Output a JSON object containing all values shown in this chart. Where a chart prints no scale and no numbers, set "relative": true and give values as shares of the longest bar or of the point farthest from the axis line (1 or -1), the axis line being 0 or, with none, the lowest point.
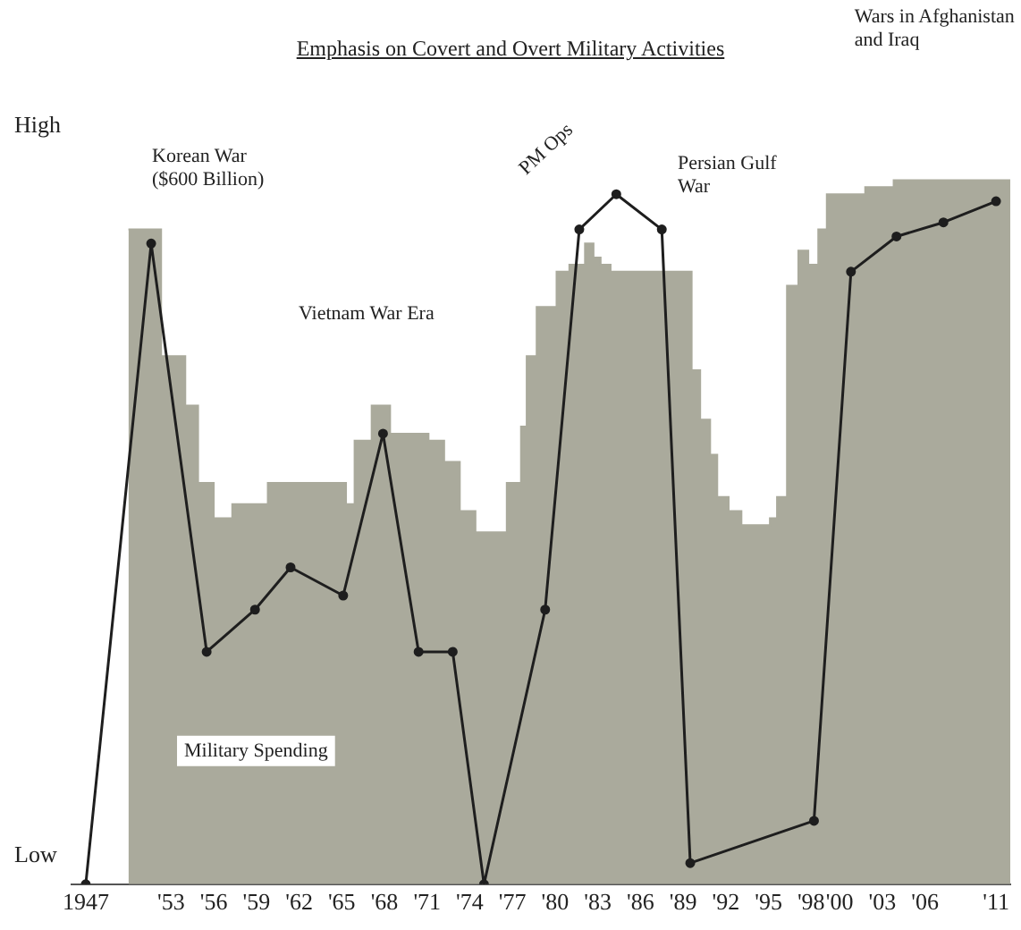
{
  "chart_data": {
    "type": "line",
    "title": "Emphasis on Covert and Overt Military Activities",
    "relative": true,
    "xlim": [
      1946,
      2012
    ],
    "xticks": [
      {
        "value": 1947,
        "label": "1947"
      },
      {
        "value": 1953,
        "label": "'53"
      },
      {
        "value": 1956,
        "label": "'56"
      },
      {
        "value": 1959,
        "label": "'59"
      },
      {
        "value": 1962,
        "label": "'62"
      },
      {
        "value": 1965,
        "label": "'65"
      },
      {
        "value": 1968,
        "label": "'68"
      },
      {
        "value": 1971,
        "label": "'71"
      },
      {
        "value": 1974,
        "label": "'74"
      },
      {
        "value": 1977,
        "label": "'77"
      },
      {
        "value": 1980,
        "label": "'80"
      },
      {
        "value": 1983,
        "label": "'83"
      },
      {
        "value": 1986,
        "label": "'86"
      },
      {
        "value": 1989,
        "label": "'89"
      },
      {
        "value": 1992,
        "label": "'92"
      },
      {
        "value": 1995,
        "label": "'95"
      },
      {
        "value": 1998,
        "label": "'98"
      },
      {
        "value": 2000,
        "label": "'00"
      },
      {
        "value": 2003,
        "label": "'03"
      },
      {
        "value": 2006,
        "label": "'06"
      },
      {
        "value": 2011,
        "label": "'11"
      }
    ],
    "series": [
      {
        "name": "Military Spending",
        "type": "area",
        "color": "#aaaa9c",
        "x": [
          1950,
          1952.3,
          1952.3,
          1954,
          1954,
          1954.9,
          1954.9,
          1956,
          1956,
          1957.3,
          1957.3,
          1959.8,
          1959.8,
          1965.3,
          1965.3,
          1965.9,
          1965.9,
          1967.1,
          1967.1,
          1968.4,
          1968.4,
          1971.1,
          1971.1,
          1972.2,
          1972.2,
          1973.3,
          1973.3,
          1974.4,
          1974.4,
          1976.6,
          1976.6,
          1977.6,
          1977.6,
          1978,
          1978,
          1978.7,
          1978.7,
          1980.1,
          1980.1,
          1981,
          1981,
          1982.1,
          1982.1,
          1982.7,
          1982.7,
          1983.2,
          1983.2,
          1983.9,
          1983.9,
          1989.6,
          1989.6,
          1990.2,
          1990.2,
          1990.9,
          1990.9,
          1991.4,
          1991.4,
          1992.2,
          1992.2,
          1993.1,
          1993.1,
          1995.1,
          1995.1,
          1995.6,
          1995.6,
          1996.3,
          1996.3,
          1997.1,
          1997.1,
          1997.8,
          1997.8,
          1998.5,
          1998.5,
          1999.1,
          1999.1,
          2001.8,
          2001.8,
          2003.8,
          2003.8,
          2012
        ],
        "values": [
          0.93,
          0.93,
          0.75,
          0.75,
          0.68,
          0.68,
          0.57,
          0.57,
          0.52,
          0.52,
          0.54,
          0.54,
          0.57,
          0.57,
          0.54,
          0.54,
          0.63,
          0.63,
          0.68,
          0.68,
          0.64,
          0.64,
          0.63,
          0.63,
          0.6,
          0.6,
          0.53,
          0.53,
          0.5,
          0.5,
          0.57,
          0.57,
          0.65,
          0.65,
          0.75,
          0.75,
          0.82,
          0.82,
          0.87,
          0.87,
          0.88,
          0.88,
          0.91,
          0.91,
          0.89,
          0.89,
          0.88,
          0.88,
          0.87,
          0.87,
          0.73,
          0.73,
          0.66,
          0.66,
          0.61,
          0.61,
          0.55,
          0.55,
          0.53,
          0.53,
          0.51,
          0.51,
          0.52,
          0.52,
          0.55,
          0.55,
          0.85,
          0.85,
          0.9,
          0.9,
          0.88,
          0.88,
          0.93,
          0.93,
          0.98,
          0.98,
          0.99,
          0.99,
          1,
          1
        ]
      },
      {
        "type": "line",
        "color": "#1e1e1e",
        "marker": "circle",
        "x": [
          1947,
          1951.6,
          1955.5,
          1958.9,
          1961.4,
          1965.1,
          1967.9,
          1970.4,
          1972.8,
          1975,
          1979.3,
          1981.7,
          1984.3,
          1987.5,
          1989.5,
          1998.2,
          2000.8,
          2004,
          2007.3,
          2011
        ],
        "values": [
          0,
          0.91,
          0.33,
          0.39,
          0.45,
          0.41,
          0.64,
          0.33,
          0.33,
          0,
          0.39,
          0.93,
          0.98,
          0.93,
          0.03,
          0.09,
          0.87,
          0.92,
          0.94,
          0.97
        ]
      }
    ],
    "annotations": [
      "High",
      "Low",
      "Korean War\n($600 Billion)",
      "Vietnam War Era",
      "PM Ops",
      "Persian Gulf\nWar",
      "Wars in Afghanistan\nand Iraq"
    ],
    "line_style": "solid",
    "grid": false,
    "legend": false
  }
}
